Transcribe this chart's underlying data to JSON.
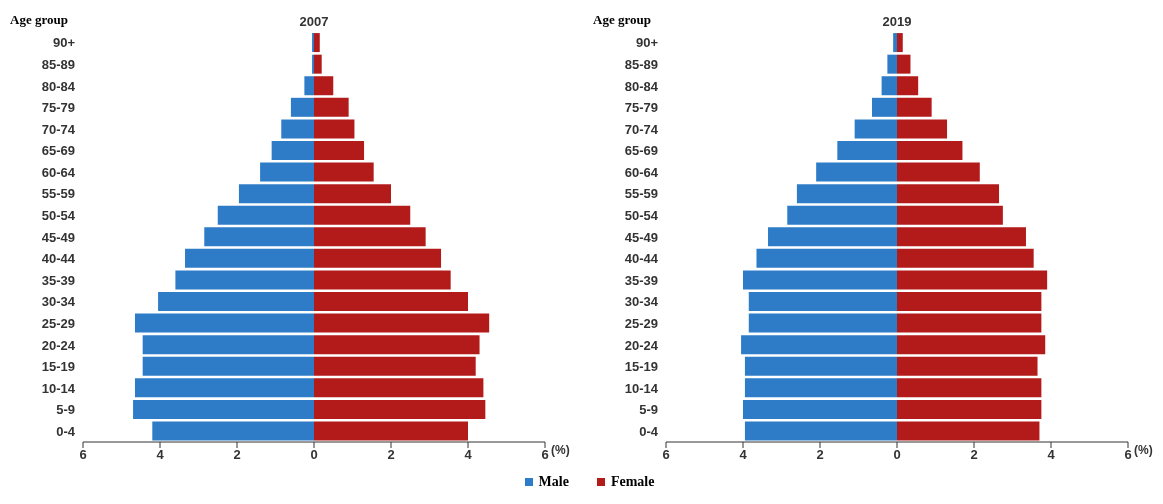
{
  "chart_data": [
    {
      "type": "bar",
      "orientation": "horizontal",
      "stacked": true,
      "title": "2007",
      "ylabel": "Age group",
      "xlabel": "(%)",
      "categories": [
        "90+",
        "85-89",
        "80-84",
        "75-79",
        "70-74",
        "65-69",
        "60-64",
        "55-59",
        "50-54",
        "45-49",
        "40-44",
        "35-39",
        "30-34",
        "25-29",
        "20-24",
        "15-19",
        "10-14",
        "5-9",
        "0-4"
      ],
      "series": [
        {
          "name": "Male",
          "color": "#2e7cc8",
          "values": [
            -0.05,
            -0.05,
            -0.25,
            -0.6,
            -0.85,
            -1.1,
            -1.4,
            -1.95,
            -2.5,
            -2.85,
            -3.35,
            -3.6,
            -4.05,
            -4.65,
            -4.45,
            -4.45,
            -4.65,
            -4.7,
            -4.2
          ]
        },
        {
          "name": "Female",
          "color": "#b31b1b",
          "values": [
            0.15,
            0.2,
            0.5,
            0.9,
            1.05,
            1.3,
            1.55,
            2.0,
            2.5,
            2.9,
            3.3,
            3.55,
            4.0,
            4.55,
            4.3,
            4.2,
            4.4,
            4.45,
            4.0
          ]
        }
      ],
      "xlim": [
        -6,
        6
      ],
      "xticks": [
        {
          "value": -6,
          "label": "6"
        },
        {
          "value": -4,
          "label": "4"
        },
        {
          "value": -2,
          "label": "2"
        },
        0,
        2,
        4,
        6
      ],
      "legend": "bottom"
    },
    {
      "type": "bar",
      "orientation": "horizontal",
      "stacked": true,
      "title": "2019",
      "ylabel": "Age group",
      "xlabel": "(%)",
      "categories": [
        "90+",
        "85-89",
        "80-84",
        "75-79",
        "70-74",
        "65-69",
        "60-64",
        "55-59",
        "50-54",
        "45-49",
        "40-44",
        "35-39",
        "30-34",
        "25-29",
        "20-24",
        "15-19",
        "10-14",
        "5-9",
        "0-4"
      ],
      "series": [
        {
          "color": "#2e7cc8",
          "values": [
            -0.1,
            -0.25,
            -0.4,
            -0.65,
            -1.1,
            -1.55,
            -2.1,
            -2.6,
            -2.85,
            -3.35,
            -3.65,
            -4.0,
            -3.85,
            -3.85,
            -4.05,
            -3.95,
            -3.95,
            -4.0,
            -3.95
          ]
        },
        {
          "color": "#b31b1b",
          "values": [
            0.15,
            0.35,
            0.55,
            0.9,
            1.3,
            1.7,
            2.15,
            2.65,
            2.75,
            3.35,
            3.55,
            3.9,
            3.75,
            3.75,
            3.85,
            3.65,
            3.75,
            3.75,
            3.7
          ]
        }
      ],
      "xlim": [
        -6,
        6
      ],
      "xticks": [
        {
          "value": -6,
          "label": "6"
        },
        {
          "value": -4,
          "label": "4"
        },
        {
          "value": -2,
          "label": "2"
        },
        0,
        2,
        4,
        6
      ]
    }
  ]
}
